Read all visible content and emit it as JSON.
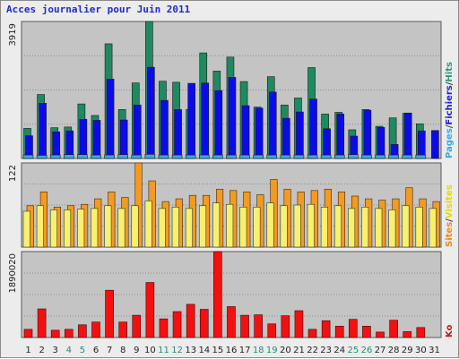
{
  "chart_data": {
    "type": "bar",
    "title": "Acces journalier pour Juin 2011",
    "categories": [
      "1",
      "2",
      "3",
      "4",
      "5",
      "6",
      "7",
      "8",
      "9",
      "10",
      "11",
      "12",
      "13",
      "14",
      "15",
      "16",
      "17",
      "18",
      "19",
      "20",
      "21",
      "22",
      "23",
      "24",
      "25",
      "26",
      "27",
      "28",
      "29",
      "30",
      "31"
    ],
    "weekend_categories": [
      "4",
      "5",
      "11",
      "12",
      "18",
      "19",
      "25",
      "26"
    ],
    "panels": [
      {
        "name": "hits",
        "ymax_label": "3919",
        "ylim": [
          0,
          3919
        ],
        "legend": [
          "Pages",
          "/",
          "Fichiers",
          "/",
          "Hits"
        ],
        "legend_colors": [
          "#3aa8e0",
          "#444444",
          "#1e1ef0",
          "#444444",
          "#2a9a80"
        ],
        "series": [
          {
            "name": "Hits",
            "color": "#1e8a60",
            "values": [
              860,
              1830,
              880,
              900,
              1560,
              1230,
              3280,
              1400,
              2160,
              3919,
              2210,
              2180,
              1400,
              3020,
              2500,
              2900,
              2200,
              1470,
              2340,
              1530,
              1730,
              2600,
              1270,
              1320,
              820,
              1400,
              920,
              1160,
              1290,
              990,
              0
            ]
          },
          {
            "name": "Fichiers",
            "color": "#0b0bea",
            "values": [
              650,
              1580,
              760,
              790,
              1120,
              1090,
              2270,
              1100,
              1530,
              2610,
              1660,
              1400,
              2150,
              2160,
              1940,
              2320,
              1510,
              1440,
              1900,
              1150,
              1330,
              1700,
              850,
              1270,
              640,
              1380,
              890,
              400,
              1300,
              790,
              800
            ]
          },
          {
            "name": "Pages",
            "color": "#3aa8e0",
            "values": [
              100,
              90,
              100,
              110,
              110,
              100,
              100,
              110,
              100,
              120,
              100,
              100,
              100,
              100,
              100,
              100,
              100,
              100,
              100,
              100,
              100,
              100,
              100,
              100,
              110,
              100,
              100,
              100,
              100,
              100,
              0
            ]
          }
        ]
      },
      {
        "name": "visits",
        "ymax_label": "122",
        "ylim": [
          0,
          122
        ],
        "legend": [
          "Sites",
          "/",
          "Visites"
        ],
        "legend_colors": [
          "#f08a10",
          "#444444",
          "#e8d800"
        ],
        "series": [
          {
            "name": "Visites",
            "color": "#f49a20",
            "values": [
              60,
              80,
              58,
              60,
              62,
              70,
              80,
              72,
              122,
              96,
              66,
              70,
              75,
              75,
              84,
              82,
              80,
              76,
              98,
              84,
              80,
              82,
              84,
              80,
              74,
              70,
              68,
              70,
              86,
              70,
              66
            ]
          },
          {
            "name": "Sites",
            "color": "#f7f070",
            "values": [
              52,
              60,
              54,
              54,
              55,
              56,
              60,
              56,
              60,
              67,
              56,
              58,
              56,
              60,
              64,
              62,
              58,
              58,
              64,
              60,
              61,
              62,
              58,
              60,
              56,
              58,
              56,
              54,
              60,
              58,
              56
            ]
          }
        ]
      },
      {
        "name": "ko",
        "ymax_label": "1890020",
        "ylim": [
          0,
          1890020
        ],
        "legend": [
          "Ko"
        ],
        "legend_colors": [
          "#dd1010"
        ],
        "series": [
          {
            "name": "Ko",
            "color": "#f41010",
            "values": [
              180000,
              630000,
              160000,
              180000,
              280000,
              340000,
              1040000,
              340000,
              490000,
              1210000,
              410000,
              570000,
              730000,
              620000,
              1890020,
              680000,
              490000,
              500000,
              300000,
              480000,
              590000,
              180000,
              370000,
              250000,
              400000,
              250000,
              120000,
              380000,
              130000,
              220000,
              0
            ]
          }
        ]
      }
    ]
  }
}
